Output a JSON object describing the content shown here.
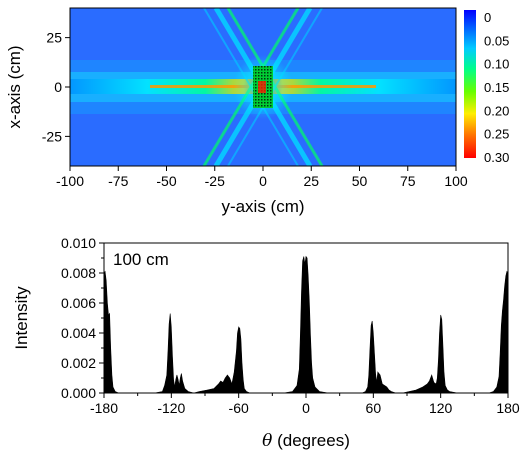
{
  "chart_data": [
    {
      "type": "heatmap",
      "xlabel": "y-axis (cm)",
      "ylabel": "x-axis (cm)",
      "xlim": [
        -100,
        100
      ],
      "ylim": [
        -40,
        40
      ],
      "xticks": [
        -100,
        -75,
        -50,
        -25,
        0,
        25,
        50,
        75,
        100
      ],
      "yticks": [
        25,
        0,
        -25
      ],
      "colorbar": {
        "ticks": [
          "0",
          "0.05",
          "0.10",
          "0.15",
          "0.20",
          "0.25",
          "0.30"
        ],
        "range": [
          0,
          0.3
        ],
        "colors": [
          "#0000ff",
          "#0077ff",
          "#00ddff",
          "#00ff66",
          "#aaff00",
          "#ffcc00",
          "#ff3300",
          "#ff0000"
        ]
      },
      "features": {
        "beam_axis_x": 0,
        "crossing_beam_angles_deg": [
          60,
          120
        ],
        "source_box_y": [
          -5,
          5
        ],
        "source_box_x": [
          -8,
          8
        ],
        "background_color": "#2a6cff"
      }
    },
    {
      "type": "area",
      "annotation": "100 cm",
      "xlabel_symbol": "θ",
      "xlabel_text": " (degrees)",
      "ylabel": "Intensity",
      "xlim": [
        -180,
        180
      ],
      "ylim": [
        0,
        0.01
      ],
      "xticks": [
        "-180",
        "-120",
        "-60",
        "0",
        "60",
        "120",
        "180"
      ],
      "yticks": [
        "0.000",
        "0.002",
        "0.004",
        "0.006",
        "0.008",
        "0.010"
      ],
      "fill_color": "#000000",
      "x": [
        -180,
        -179,
        -178,
        -177,
        -176,
        -175,
        -174,
        -173,
        -172,
        -170,
        -167,
        -163,
        -155,
        -145,
        -135,
        -128,
        -126,
        -124,
        -123,
        -122,
        -121,
        -120,
        -119,
        -118,
        -117,
        -116,
        -115,
        -114,
        -113,
        -112,
        -111,
        -110,
        -108,
        -105,
        -100,
        -95,
        -88,
        -82,
        -78,
        -76,
        -74,
        -72,
        -70,
        -68,
        -66,
        -64,
        -62,
        -61,
        -60,
        -59,
        -58,
        -57,
        -56,
        -55,
        -53,
        -50,
        -45,
        -40,
        -30,
        -20,
        -12,
        -8,
        -6,
        -5,
        -4,
        -3,
        -2,
        -1,
        0,
        1,
        2,
        3,
        4,
        5,
        6,
        8,
        12,
        20,
        30,
        40,
        45,
        50,
        53,
        55,
        56,
        57,
        58,
        59,
        60,
        61,
        62,
        63,
        64,
        66,
        68,
        70,
        72,
        74,
        76,
        80,
        86,
        92,
        98,
        104,
        108,
        110,
        112,
        114,
        116,
        117,
        118,
        119,
        120,
        121,
        122,
        123,
        124,
        126,
        128,
        135,
        145,
        155,
        163,
        167,
        170,
        172,
        173,
        174,
        175,
        176,
        177,
        178,
        179,
        180
      ],
      "values": [
        0.008,
        0.0081,
        0.0075,
        0.006,
        0.0052,
        0.0053,
        0.003,
        0.0012,
        0.0004,
        0.0001,
        0.0,
        0.0,
        0.0,
        0.0,
        0.0,
        0.0001,
        0.0005,
        0.0012,
        0.0028,
        0.0046,
        0.0053,
        0.0044,
        0.0024,
        0.0009,
        0.0004,
        0.0009,
        0.0012,
        0.0009,
        0.0005,
        0.001,
        0.0013,
        0.0008,
        0.0003,
        0.0001,
        0.0,
        0.0001,
        0.0002,
        0.0003,
        0.0006,
        0.0008,
        0.0007,
        0.001,
        0.0012,
        0.001,
        0.0006,
        0.0014,
        0.0028,
        0.004,
        0.0044,
        0.0043,
        0.0036,
        0.002,
        0.0009,
        0.0003,
        0.0001,
        0.0,
        0.0,
        0.0,
        0.0,
        0.0,
        0.0001,
        0.0005,
        0.0016,
        0.004,
        0.0068,
        0.0088,
        0.0091,
        0.0086,
        0.0091,
        0.009,
        0.0078,
        0.006,
        0.0038,
        0.002,
        0.001,
        0.0004,
        0.0001,
        0.0,
        0.0,
        0.0,
        0.0,
        0.0,
        0.0001,
        0.0004,
        0.0012,
        0.003,
        0.0045,
        0.0048,
        0.004,
        0.0026,
        0.0013,
        0.0007,
        0.0014,
        0.0012,
        0.0006,
        0.0005,
        0.0004,
        0.0002,
        0.0001,
        0.0,
        0.0,
        0.0001,
        0.0002,
        0.0004,
        0.0006,
        0.0008,
        0.0012,
        0.0007,
        0.0006,
        0.001,
        0.0022,
        0.004,
        0.0052,
        0.0049,
        0.0032,
        0.0014,
        0.0005,
        0.0002,
        0.0001,
        0.0,
        0.0,
        0.0,
        0.0,
        0.0001,
        0.0004,
        0.0011,
        0.0026,
        0.0045,
        0.0055,
        0.0062,
        0.0071,
        0.0078,
        0.0081,
        0.008
      ]
    }
  ]
}
